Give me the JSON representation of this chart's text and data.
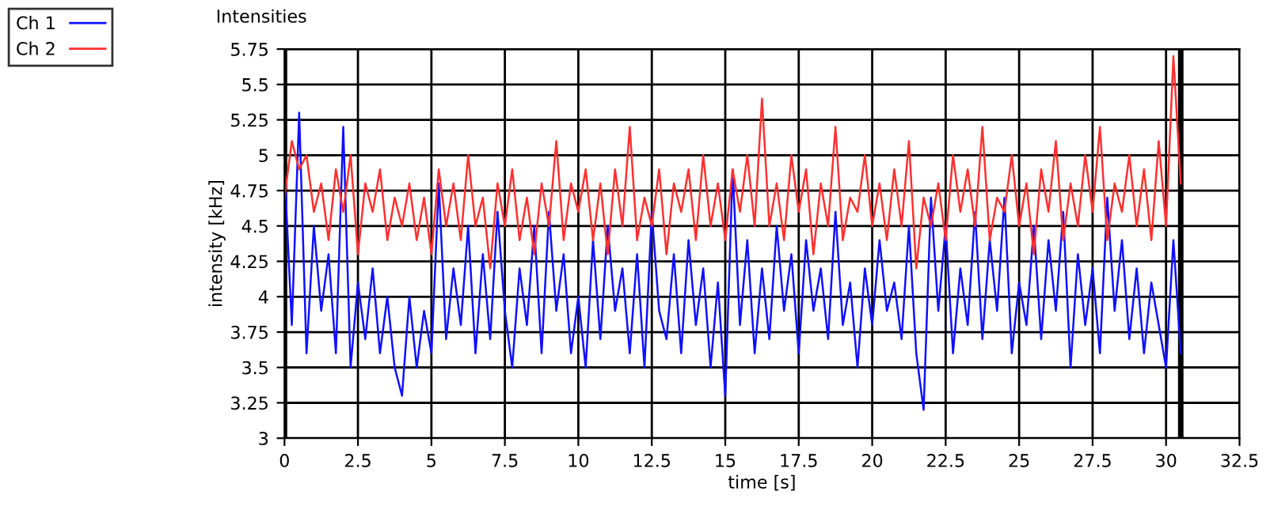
{
  "chart_data": {
    "type": "line",
    "title": "Intensities",
    "xlabel": "time [s]",
    "ylabel": "intensity [kHz]",
    "x": [
      0,
      0.25,
      0.5,
      0.75,
      1,
      1.25,
      1.5,
      1.75,
      2,
      2.25,
      2.5,
      2.75,
      3,
      3.25,
      3.5,
      3.75,
      4,
      4.25,
      4.5,
      4.75,
      5,
      5.25,
      5.5,
      5.75,
      6,
      6.25,
      6.5,
      6.75,
      7,
      7.25,
      7.5,
      7.75,
      8,
      8.25,
      8.5,
      8.75,
      9,
      9.25,
      9.5,
      9.75,
      10,
      10.25,
      10.5,
      10.75,
      11,
      11.25,
      11.5,
      11.75,
      12,
      12.25,
      12.5,
      12.75,
      13,
      13.25,
      13.5,
      13.75,
      14,
      14.25,
      14.5,
      14.75,
      15,
      15.25,
      15.5,
      15.75,
      16,
      16.25,
      16.5,
      16.75,
      17,
      17.25,
      17.5,
      17.75,
      18,
      18.25,
      18.5,
      18.75,
      19,
      19.25,
      19.5,
      19.75,
      20,
      20.25,
      20.5,
      20.75,
      21,
      21.25,
      21.5,
      21.75,
      22,
      22.25,
      22.5,
      22.75,
      23,
      23.25,
      23.5,
      23.75,
      24,
      24.25,
      24.5,
      24.75,
      25,
      25.25,
      25.5,
      25.75,
      26,
      26.25,
      26.5,
      26.75,
      27,
      27.25,
      27.5,
      27.75,
      28,
      28.25,
      28.5,
      28.75,
      29,
      29.25,
      29.5,
      29.75,
      30,
      30.25,
      30.5
    ],
    "series": [
      {
        "name": "Ch 1",
        "color": "#1010ff",
        "values": [
          4.9,
          3.8,
          5.3,
          3.6,
          4.5,
          3.9,
          4.3,
          3.6,
          5.2,
          3.5,
          4.1,
          3.7,
          4.2,
          3.6,
          4.0,
          3.5,
          3.3,
          4.0,
          3.5,
          3.9,
          3.6,
          4.8,
          3.7,
          4.2,
          3.8,
          4.5,
          3.6,
          4.3,
          3.7,
          4.6,
          3.9,
          3.5,
          4.2,
          3.8,
          4.5,
          3.6,
          4.6,
          3.9,
          4.3,
          3.6,
          4.0,
          3.5,
          4.4,
          3.7,
          4.5,
          3.9,
          4.2,
          3.6,
          4.3,
          3.5,
          4.6,
          3.9,
          3.7,
          4.3,
          3.6,
          4.4,
          3.8,
          4.2,
          3.5,
          4.1,
          3.3,
          4.9,
          3.8,
          4.4,
          3.6,
          4.2,
          3.7,
          4.5,
          3.9,
          4.3,
          3.6,
          4.4,
          3.9,
          4.2,
          3.7,
          4.6,
          3.8,
          4.1,
          3.5,
          4.2,
          3.8,
          4.4,
          3.9,
          4.1,
          3.7,
          4.5,
          3.6,
          3.2,
          4.7,
          3.9,
          4.5,
          3.6,
          4.2,
          3.8,
          4.6,
          3.7,
          4.4,
          3.9,
          4.7,
          3.6,
          4.1,
          3.8,
          4.5,
          3.7,
          4.4,
          3.9,
          4.6,
          3.5,
          4.3,
          3.8,
          4.2,
          3.6,
          4.7,
          3.9,
          4.4,
          3.7,
          4.2,
          3.6,
          4.1,
          3.8,
          3.5,
          4.4,
          3.6
        ]
      },
      {
        "name": "Ch 2",
        "color": "#ff3030",
        "values": [
          4.7,
          5.1,
          4.9,
          5.0,
          4.6,
          4.8,
          4.4,
          4.9,
          4.6,
          5.0,
          4.3,
          4.8,
          4.6,
          4.9,
          4.4,
          4.7,
          4.5,
          4.8,
          4.4,
          4.7,
          4.3,
          4.9,
          4.5,
          4.8,
          4.4,
          5.0,
          4.5,
          4.7,
          4.2,
          4.8,
          4.5,
          4.9,
          4.4,
          4.7,
          4.3,
          4.8,
          4.5,
          5.1,
          4.4,
          4.8,
          4.6,
          4.9,
          4.4,
          4.8,
          4.3,
          4.9,
          4.5,
          5.2,
          4.4,
          4.7,
          4.5,
          4.9,
          4.3,
          4.8,
          4.6,
          4.9,
          4.4,
          5.0,
          4.5,
          4.8,
          4.4,
          4.9,
          4.6,
          5.0,
          4.5,
          5.4,
          4.5,
          4.8,
          4.4,
          5.0,
          4.6,
          4.9,
          4.3,
          4.8,
          4.5,
          5.2,
          4.4,
          4.7,
          4.6,
          5.0,
          4.5,
          4.8,
          4.4,
          4.9,
          4.5,
          5.1,
          4.2,
          4.7,
          4.5,
          4.8,
          4.4,
          5.0,
          4.6,
          4.9,
          4.5,
          5.2,
          4.4,
          4.7,
          4.6,
          5.0,
          4.5,
          4.8,
          4.3,
          4.9,
          4.6,
          5.1,
          4.4,
          4.8,
          4.5,
          5.0,
          4.6,
          5.2,
          4.4,
          4.8,
          4.6,
          5.0,
          4.5,
          4.9,
          4.4,
          5.1,
          4.5,
          5.7,
          4.8
        ]
      }
    ],
    "xlim": [
      0,
      32.5
    ],
    "xticks": [
      0,
      2.5,
      5,
      7.5,
      10,
      12.5,
      15,
      17.5,
      20,
      22.5,
      25,
      27.5,
      30,
      32.5
    ],
    "ylim": [
      3,
      5.75
    ],
    "yticks": [
      3,
      3.25,
      3.5,
      3.75,
      4,
      4.25,
      4.5,
      4.75,
      5,
      5.25,
      5.5,
      5.75
    ],
    "ref_lines": [
      {
        "axis": "x",
        "value": 0,
        "color": "#000000"
      },
      {
        "axis": "x",
        "value": 30.5,
        "color": "#000000"
      }
    ],
    "grid": true,
    "legend": "top left",
    "marker": "none",
    "line_style": "solid"
  }
}
